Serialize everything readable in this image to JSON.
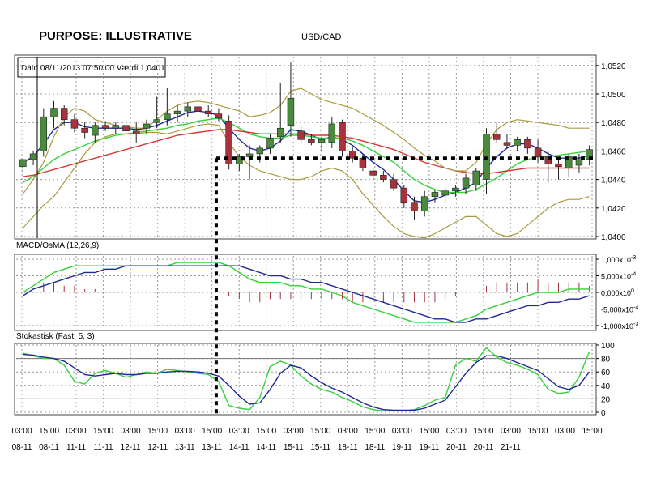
{
  "header": {
    "purpose": "PURPOSE: ILLUSTRATIVE",
    "symbol": "USD/CAD"
  },
  "info_box": "Dato 08/11/2013 07:50:00 Værdi 1,0401",
  "panels": {
    "macd_title": "MACD/OsMA (12,26,9)",
    "stoch_title": "Stokastisk (Fast, 5, 3)"
  },
  "colors": {
    "up": "#4a8a3c",
    "down": "#a8333d",
    "ma_blue": "#1f2a9a",
    "ma_green": "#35d13a",
    "ma_red": "#d33a36",
    "bands": "#a89a3c",
    "grid": "#999999"
  },
  "chart_data": [
    {
      "type": "candlestick",
      "title": "USD/CAD",
      "ylim": [
        1.04,
        1.0525
      ],
      "yticks": [
        "1,0520",
        "1,0500",
        "1,0480",
        "1,0460",
        "1,0440",
        "1,0420",
        "1,0400"
      ],
      "xtick_time": [
        "03:00",
        "15:00",
        "03:00",
        "15:00",
        "03:00",
        "15:00",
        "03:00",
        "15:00",
        "03:00",
        "15:00",
        "03:00",
        "15:00",
        "03:00",
        "15:00",
        "03:00",
        "15:00",
        "03:00",
        "15:00",
        "03:00",
        "15:00",
        "03:00",
        "15:00"
      ],
      "xtick_date": [
        "08-11",
        "08-11",
        "11-11",
        "11-11",
        "12-11",
        "12-11",
        "13-11",
        "13-11",
        "14-11",
        "14-11",
        "15-11",
        "15-11",
        "18-11",
        "18-11",
        "19-11",
        "19-11",
        "20-11",
        "20-11",
        "21-11"
      ],
      "xtick_date_note": "dates are printed under the first 19 of the 22 time ticks in the original, aligned as 03:00 / 15:00 pairs",
      "candles": [
        [
          1.0449,
          1.0455,
          1.0445,
          1.0454
        ],
        [
          1.0454,
          1.046,
          1.045,
          1.0458
        ],
        [
          1.046,
          1.049,
          1.0456,
          1.0484
        ],
        [
          1.0484,
          1.0495,
          1.0476,
          1.049
        ],
        [
          1.049,
          1.0492,
          1.0478,
          1.0482
        ],
        [
          1.0482,
          1.0486,
          1.0473,
          1.0476
        ],
        [
          1.0476,
          1.048,
          1.0469,
          1.0473
        ],
        [
          1.0471,
          1.048,
          1.0466,
          1.0478
        ],
        [
          1.0478,
          1.0481,
          1.0474,
          1.0476
        ],
        [
          1.0476,
          1.048,
          1.0472,
          1.0478
        ],
        [
          1.0478,
          1.048,
          1.047,
          1.0474
        ],
        [
          1.0474,
          1.048,
          1.0466,
          1.0472
        ],
        [
          1.0476,
          1.0482,
          1.0472,
          1.0479
        ],
        [
          1.048,
          1.0498,
          1.0476,
          1.0482
        ],
        [
          1.0482,
          1.0504,
          1.0478,
          1.0486
        ],
        [
          1.0486,
          1.0492,
          1.048,
          1.0488
        ],
        [
          1.0488,
          1.0494,
          1.0484,
          1.0491
        ],
        [
          1.0491,
          1.0495,
          1.0486,
          1.0488
        ],
        [
          1.0488,
          1.0492,
          1.0484,
          1.0486
        ],
        [
          1.0486,
          1.049,
          1.0481,
          1.0483
        ],
        [
          1.0481,
          1.0485,
          1.0447,
          1.0451
        ],
        [
          1.0451,
          1.0458,
          1.0446,
          1.0456
        ],
        [
          1.0456,
          1.0464,
          1.044,
          1.0458
        ],
        [
          1.0458,
          1.0464,
          1.0452,
          1.0462
        ],
        [
          1.0462,
          1.0472,
          1.0458,
          1.0469
        ],
        [
          1.047,
          1.0508,
          1.0466,
          1.0476
        ],
        [
          1.0478,
          1.0522,
          1.047,
          1.0497
        ],
        [
          1.0474,
          1.0478,
          1.0466,
          1.0468
        ],
        [
          1.0468,
          1.0472,
          1.0464,
          1.0466
        ],
        [
          1.0466,
          1.047,
          1.046,
          1.0468
        ],
        [
          1.0466,
          1.0484,
          1.0462,
          1.0479
        ],
        [
          1.048,
          1.0482,
          1.0456,
          1.046
        ],
        [
          1.046,
          1.0463,
          1.0452,
          1.0455
        ],
        [
          1.0455,
          1.0458,
          1.0446,
          1.0448
        ],
        [
          1.0446,
          1.0448,
          1.044,
          1.0443
        ],
        [
          1.0443,
          1.0446,
          1.0438,
          1.044
        ],
        [
          1.044,
          1.0444,
          1.0432,
          1.0434
        ],
        [
          1.0434,
          1.0436,
          1.042,
          1.0424
        ],
        [
          1.0424,
          1.0428,
          1.0412,
          1.0418
        ],
        [
          1.0418,
          1.0432,
          1.0414,
          1.0428
        ],
        [
          1.0428,
          1.0433,
          1.0424,
          1.0431
        ],
        [
          1.0429,
          1.0434,
          1.0424,
          1.0432
        ],
        [
          1.0432,
          1.0436,
          1.0428,
          1.0434
        ],
        [
          1.0434,
          1.0444,
          1.043,
          1.0441
        ],
        [
          1.0436,
          1.0448,
          1.0432,
          1.0446
        ],
        [
          1.044,
          1.0476,
          1.043,
          1.0472
        ],
        [
          1.0472,
          1.048,
          1.0466,
          1.0468
        ],
        [
          1.0466,
          1.0472,
          1.0462,
          1.0464
        ],
        [
          1.0464,
          1.047,
          1.046,
          1.0468
        ],
        [
          1.0468,
          1.047,
          1.0458,
          1.0462
        ],
        [
          1.0462,
          1.0468,
          1.0452,
          1.0456
        ],
        [
          1.0456,
          1.046,
          1.0438,
          1.0451
        ],
        [
          1.0451,
          1.0456,
          1.044,
          1.0449
        ],
        [
          1.0448,
          1.0458,
          1.0442,
          1.0456
        ],
        [
          1.045,
          1.0458,
          1.0445,
          1.0454
        ],
        [
          1.0454,
          1.0464,
          1.045,
          1.0461
        ]
      ],
      "candles_fields": [
        "open",
        "high",
        "low",
        "close"
      ],
      "horizontal_level": 1.0455,
      "vertical_marker_index": 19,
      "series": [
        {
          "values": [
            1.0452,
            1.0456,
            1.0465,
            1.0475,
            1.048,
            1.048,
            1.0477,
            1.0476,
            1.0476,
            1.0476,
            1.0476,
            1.0475,
            1.0476,
            1.0478,
            1.0481,
            1.0484,
            1.0487,
            1.0488,
            1.0487,
            1.0485,
            1.0476,
            1.0468,
            1.0462,
            1.046,
            1.0462,
            1.0467,
            1.0475,
            1.0474,
            1.0471,
            1.0468,
            1.047,
            1.0468,
            1.0464,
            1.0458,
            1.0452,
            1.0447,
            1.044,
            1.0432,
            1.0425,
            1.0424,
            1.0426,
            1.0429,
            1.0431,
            1.0434,
            1.0438,
            1.0448,
            1.0456,
            1.0462,
            1.0465,
            1.0465,
            1.0462,
            1.0458,
            1.0455,
            1.0455,
            1.0455,
            1.0457
          ]
        },
        {
          "values": [
            1.0438,
            1.0442,
            1.0448,
            1.0454,
            1.0458,
            1.0461,
            1.0464,
            1.0467,
            1.0469,
            1.0471,
            1.0472,
            1.0473,
            1.0474,
            1.0475,
            1.0476,
            1.0478,
            1.0479,
            1.0481,
            1.0482,
            1.0483,
            1.048,
            1.0476,
            1.0472,
            1.047,
            1.0469,
            1.0469,
            1.0471,
            1.0471,
            1.047,
            1.0469,
            1.0469,
            1.0469,
            1.0467,
            1.0464,
            1.046,
            1.0456,
            1.0452,
            1.0446,
            1.044,
            1.0436,
            1.0433,
            1.0431,
            1.0431,
            1.0431,
            1.0433,
            1.0437,
            1.0441,
            1.0446,
            1.0451,
            1.0454,
            1.0456,
            1.0456,
            1.0457,
            1.0458,
            1.0459,
            1.046
          ]
        },
        {
          "values": [
            1.0442,
            1.0443,
            1.0445,
            1.0447,
            1.0449,
            1.0451,
            1.0453,
            1.0455,
            1.0457,
            1.0459,
            1.0461,
            1.0463,
            1.0465,
            1.0467,
            1.0469,
            1.0471,
            1.0472,
            1.0473,
            1.0474,
            1.0475,
            1.0475,
            1.0474,
            1.0473,
            1.0472,
            1.0472,
            1.0472,
            1.0472,
            1.0472,
            1.0471,
            1.0471,
            1.0471,
            1.047,
            1.0469,
            1.0467,
            1.0465,
            1.0463,
            1.0461,
            1.0458,
            1.0455,
            1.0452,
            1.045,
            1.0448,
            1.0446,
            1.0445,
            1.0444,
            1.0444,
            1.0445,
            1.0446,
            1.0447,
            1.0448,
            1.0448,
            1.0448,
            1.0448,
            1.0448,
            1.0448,
            1.0448
          ]
        },
        {
          "values": [
            1.043,
            1.044,
            1.0452,
            1.047,
            1.0484,
            1.049,
            1.0488,
            1.0482,
            1.048,
            1.0478,
            1.0477,
            1.0476,
            1.0476,
            1.0482,
            1.0488,
            1.0492,
            1.0494,
            1.0495,
            1.0494,
            1.0492,
            1.049,
            1.0488,
            1.0484,
            1.0485,
            1.0487,
            1.0492,
            1.0502,
            1.0504,
            1.05,
            1.0496,
            1.0494,
            1.0492,
            1.049,
            1.0486,
            1.0482,
            1.0478,
            1.0473,
            1.0468,
            1.0462,
            1.0457,
            1.0453,
            1.0448,
            1.0446,
            1.0446,
            1.0452,
            1.0465,
            1.0475,
            1.048,
            1.0482,
            1.0481,
            1.048,
            1.0479,
            1.0478,
            1.0476,
            1.0476,
            1.0476
          ]
        },
        {
          "values": [
            1.0406,
            1.0414,
            1.0422,
            1.0428,
            1.0438,
            1.0448,
            1.0458,
            1.0466,
            1.047,
            1.0472,
            1.0472,
            1.0472,
            1.0473,
            1.0473,
            1.0472,
            1.0474,
            1.0476,
            1.0478,
            1.0479,
            1.0478,
            1.0466,
            1.0456,
            1.045,
            1.0446,
            1.0444,
            1.0442,
            1.044,
            1.044,
            1.0442,
            1.0446,
            1.0448,
            1.0446,
            1.044,
            1.043,
            1.0422,
            1.0414,
            1.0407,
            1.0402,
            1.04,
            1.0399,
            1.0402,
            1.0406,
            1.041,
            1.0414,
            1.0414,
            1.0408,
            1.0402,
            1.04,
            1.0402,
            1.0408,
            1.0414,
            1.042,
            1.0424,
            1.0426,
            1.0426,
            1.0428
          ]
        }
      ],
      "series_roles": [
        "fast MA",
        "medium MA",
        "slow MA",
        "upper band",
        "lower band"
      ]
    },
    {
      "type": "line",
      "title": "MACD/OsMA (12,26,9)",
      "yticks": [
        "1,000x10",
        "5,000x10",
        "0,000x10",
        "-5,000x10",
        "-1,000x10"
      ],
      "ytick_exponents": [
        "-3",
        "-4",
        "0",
        "-4",
        "-3"
      ],
      "ylim": [
        -0.00105,
        0.00105
      ],
      "series": [
        {
          "values": [
            0.0,
            0.0002,
            0.0004,
            0.0006,
            0.0007,
            0.0008,
            0.0008,
            0.0008,
            0.0008,
            0.0008,
            0.0008,
            0.0008,
            0.0008,
            0.0008,
            0.0008,
            0.0009,
            0.0009,
            0.0009,
            0.0009,
            0.0009,
            0.0008,
            0.0006,
            0.0004,
            0.0003,
            0.0003,
            0.0003,
            0.0002,
            0.0002,
            0.0001,
            0.0001,
            0.0,
            -0.0001,
            -0.0003,
            -0.0004,
            -0.0005,
            -0.0006,
            -0.0007,
            -0.0008,
            -0.0009,
            -0.0009,
            -0.0009,
            -0.0009,
            -0.0009,
            -0.0008,
            -0.0007,
            -0.0005,
            -0.0004,
            -0.0003,
            -0.0002,
            -0.0001,
            0.0,
            0.0,
            0.0,
            0.0001,
            0.0001,
            0.0001
          ]
        },
        {
          "values": [
            -0.0001,
            0.0001,
            0.0002,
            0.0003,
            0.0004,
            0.0005,
            0.0006,
            0.0006,
            0.0007,
            0.0007,
            0.0008,
            0.0008,
            0.0008,
            0.0008,
            0.0008,
            0.0008,
            0.0008,
            0.0008,
            0.0008,
            0.0008,
            0.0008,
            0.0008,
            0.0007,
            0.0006,
            0.0005,
            0.0005,
            0.0004,
            0.0004,
            0.0003,
            0.0003,
            0.0002,
            0.0001,
            0.0,
            -0.0001,
            -0.0002,
            -0.0003,
            -0.0004,
            -0.0005,
            -0.0006,
            -0.0007,
            -0.0008,
            -0.0008,
            -0.0009,
            -0.0009,
            -0.0008,
            -0.0008,
            -0.0007,
            -0.0006,
            -0.0005,
            -0.0004,
            -0.0004,
            -0.0003,
            -0.0003,
            -0.0002,
            -0.0002,
            -0.0001
          ]
        },
        {
          "values": [
            0,
            0,
            0.0003,
            0.0003,
            0.0002,
            0.0002,
            0.0001,
            0.0001,
            0,
            0,
            0,
            0,
            0,
            0,
            0,
            0,
            0,
            0,
            0,
            0,
            -0.0001,
            -0.0002,
            -0.0003,
            -0.0003,
            -0.0002,
            -0.0002,
            -0.0002,
            -0.0002,
            -0.0002,
            -0.0002,
            -0.0002,
            -0.0002,
            -0.0003,
            -0.0003,
            -0.0003,
            -0.0003,
            -0.0003,
            -0.0003,
            -0.0003,
            -0.0003,
            -0.0003,
            -0.0002,
            -0.0001,
            0,
            0,
            0.0002,
            0.0003,
            0.0003,
            0.0003,
            0.0003,
            0.0004,
            0.0003,
            0.0003,
            0.0003,
            0.0003,
            0.0002
          ]
        }
      ]
    },
    {
      "type": "line",
      "title": "Stokastisk (Fast, 5, 3)",
      "ylim": [
        0,
        100
      ],
      "yticks": [
        "100",
        "80",
        "60",
        "40",
        "20",
        "0"
      ],
      "series": [
        {
          "values": [
            88,
            84,
            80,
            80,
            70,
            46,
            42,
            58,
            62,
            58,
            52,
            56,
            60,
            58,
            64,
            62,
            60,
            58,
            56,
            46,
            10,
            6,
            4,
            22,
            68,
            76,
            70,
            54,
            42,
            34,
            30,
            22,
            16,
            8,
            4,
            2,
            2,
            2,
            4,
            10,
            18,
            22,
            70,
            80,
            76,
            96,
            82,
            74,
            70,
            64,
            56,
            34,
            28,
            30,
            52,
            90
          ]
        },
        {
          "values": [
            86,
            85,
            82,
            80,
            76,
            66,
            56,
            54,
            56,
            58,
            56,
            56,
            58,
            58,
            60,
            61,
            61,
            60,
            58,
            54,
            40,
            24,
            12,
            14,
            34,
            58,
            70,
            66,
            54,
            44,
            36,
            30,
            22,
            14,
            8,
            4,
            3,
            3,
            3,
            6,
            12,
            18,
            38,
            58,
            74,
            84,
            84,
            80,
            74,
            68,
            62,
            50,
            38,
            34,
            40,
            60
          ]
        }
      ],
      "reference_lines": [
        80,
        20
      ]
    }
  ]
}
